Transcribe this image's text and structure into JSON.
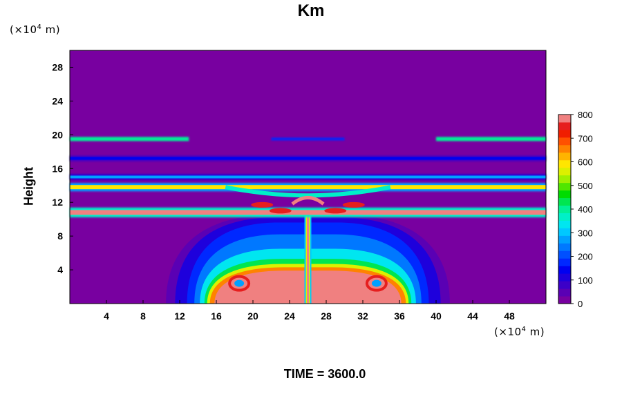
{
  "chart_data": {
    "type": "heatmap",
    "title": "Km",
    "ylabel": "Height",
    "xunit": "(×10",
    "yunit": "(×10",
    "unit_exp": "4",
    "unit_m": " m)",
    "xlim": [
      0,
      52
    ],
    "ylim": [
      0,
      30
    ],
    "xticks": [
      4,
      8,
      12,
      16,
      20,
      24,
      28,
      32,
      36,
      40,
      44,
      48
    ],
    "yticks": [
      4,
      8,
      12,
      16,
      20,
      24,
      28
    ],
    "colorbar": {
      "min": 0,
      "max": 800,
      "ticks": [
        0,
        100,
        200,
        300,
        400,
        500,
        600,
        700,
        800
      ],
      "colors": [
        "#7800a0",
        "#5a00b4",
        "#3c00c8",
        "#1e00dc",
        "#0000f0",
        "#0028ff",
        "#0050ff",
        "#0078ff",
        "#00a0ff",
        "#00c8ff",
        "#00e6f0",
        "#00f0c8",
        "#00f096",
        "#00e650",
        "#00dc00",
        "#50e600",
        "#a0f000",
        "#dcf000",
        "#ffe600",
        "#ffb400",
        "#ff8200",
        "#ff5000",
        "#f01e00",
        "#e61e1e",
        "#f08080"
      ]
    },
    "bands": [
      {
        "y": 19.5,
        "value": 400,
        "extent": "left and right edges, faint at center"
      },
      {
        "y": 17.2,
        "value": 120,
        "extent": "full width"
      },
      {
        "y": 15.0,
        "value": 250,
        "extent": "full width"
      },
      {
        "y": 13.8,
        "value": 600,
        "extent": "full width, arched at center"
      },
      {
        "y": 10.8,
        "value": 800,
        "extent": "full width"
      }
    ],
    "plume": {
      "x_center": 26,
      "x_range": [
        11,
        41
      ],
      "top_height": 12,
      "core_value": 800
    }
  },
  "footer": {
    "time_label": "TIME = 3600.0"
  }
}
